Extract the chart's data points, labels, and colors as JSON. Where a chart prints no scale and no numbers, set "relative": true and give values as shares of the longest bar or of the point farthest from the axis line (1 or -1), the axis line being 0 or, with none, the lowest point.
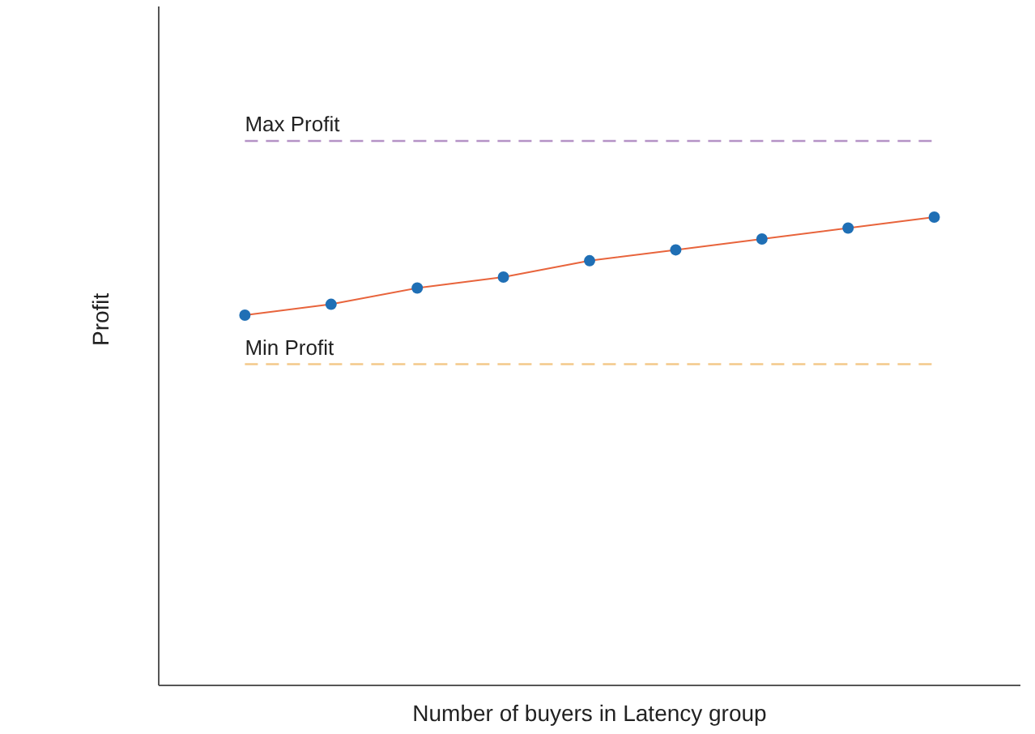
{
  "chart_data": {
    "type": "line",
    "xlabel": "Number of buyers in Latency group",
    "ylabel": "Profit",
    "relative": true,
    "categories": [
      null,
      null,
      null,
      null,
      null,
      null,
      null,
      null,
      null
    ],
    "series": [
      {
        "name": "Max Profit",
        "color": "#b592c6",
        "line_style": "dashed",
        "marker": "none",
        "values": [
          1,
          1,
          1,
          1,
          1,
          1,
          1,
          1,
          1
        ]
      },
      {
        "name": "Min Profit",
        "color": "#f3c98a",
        "line_style": "dashed",
        "marker": "none",
        "values": [
          0.59,
          0.59,
          0.59,
          0.59,
          0.59,
          0.59,
          0.59,
          0.59,
          0.59
        ]
      },
      {
        "color": "#e8643c",
        "line_style": "solid",
        "marker": "circle",
        "colors": [
          "#1f6fb5",
          "#1f6fb5",
          "#1f6fb5",
          "#1f6fb5",
          "#1f6fb5",
          "#1f6fb5",
          "#1f6fb5",
          "#1f6fb5",
          "#1f6fb5"
        ],
        "values": [
          0.68,
          0.7,
          0.73,
          0.75,
          0.78,
          0.8,
          0.82,
          0.84,
          0.86
        ]
      }
    ]
  }
}
